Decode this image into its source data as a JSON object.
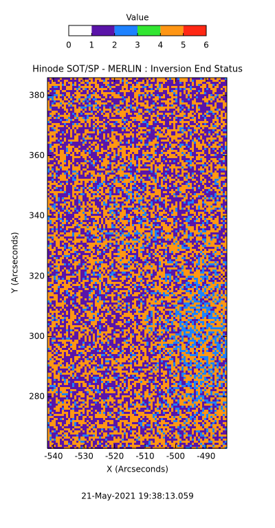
{
  "chart_data": {
    "type": "heatmap",
    "title": "Hinode SOT/SP - MERLIN : Inversion End Status",
    "xlabel": "X (Arcseconds)",
    "ylabel": "Y (Arcseconds)",
    "xlim": [
      -542,
      -483.2
    ],
    "ylim": [
      262.9,
      385.9
    ],
    "xticks": [
      -540,
      -530,
      -520,
      -510,
      -500,
      -490
    ],
    "yticks": [
      280,
      300,
      320,
      340,
      360,
      380
    ],
    "colorbar": {
      "label": "Value",
      "lim": [
        0,
        6
      ],
      "ticks": [
        0,
        1,
        2,
        3,
        4,
        5,
        6
      ],
      "colors": [
        "#ffffff",
        "#5a14a8",
        "#1e82ff",
        "#32e632",
        "#ff9614",
        "#ff2814"
      ]
    },
    "footer": "21-May-2021 19:38:13.059"
  }
}
